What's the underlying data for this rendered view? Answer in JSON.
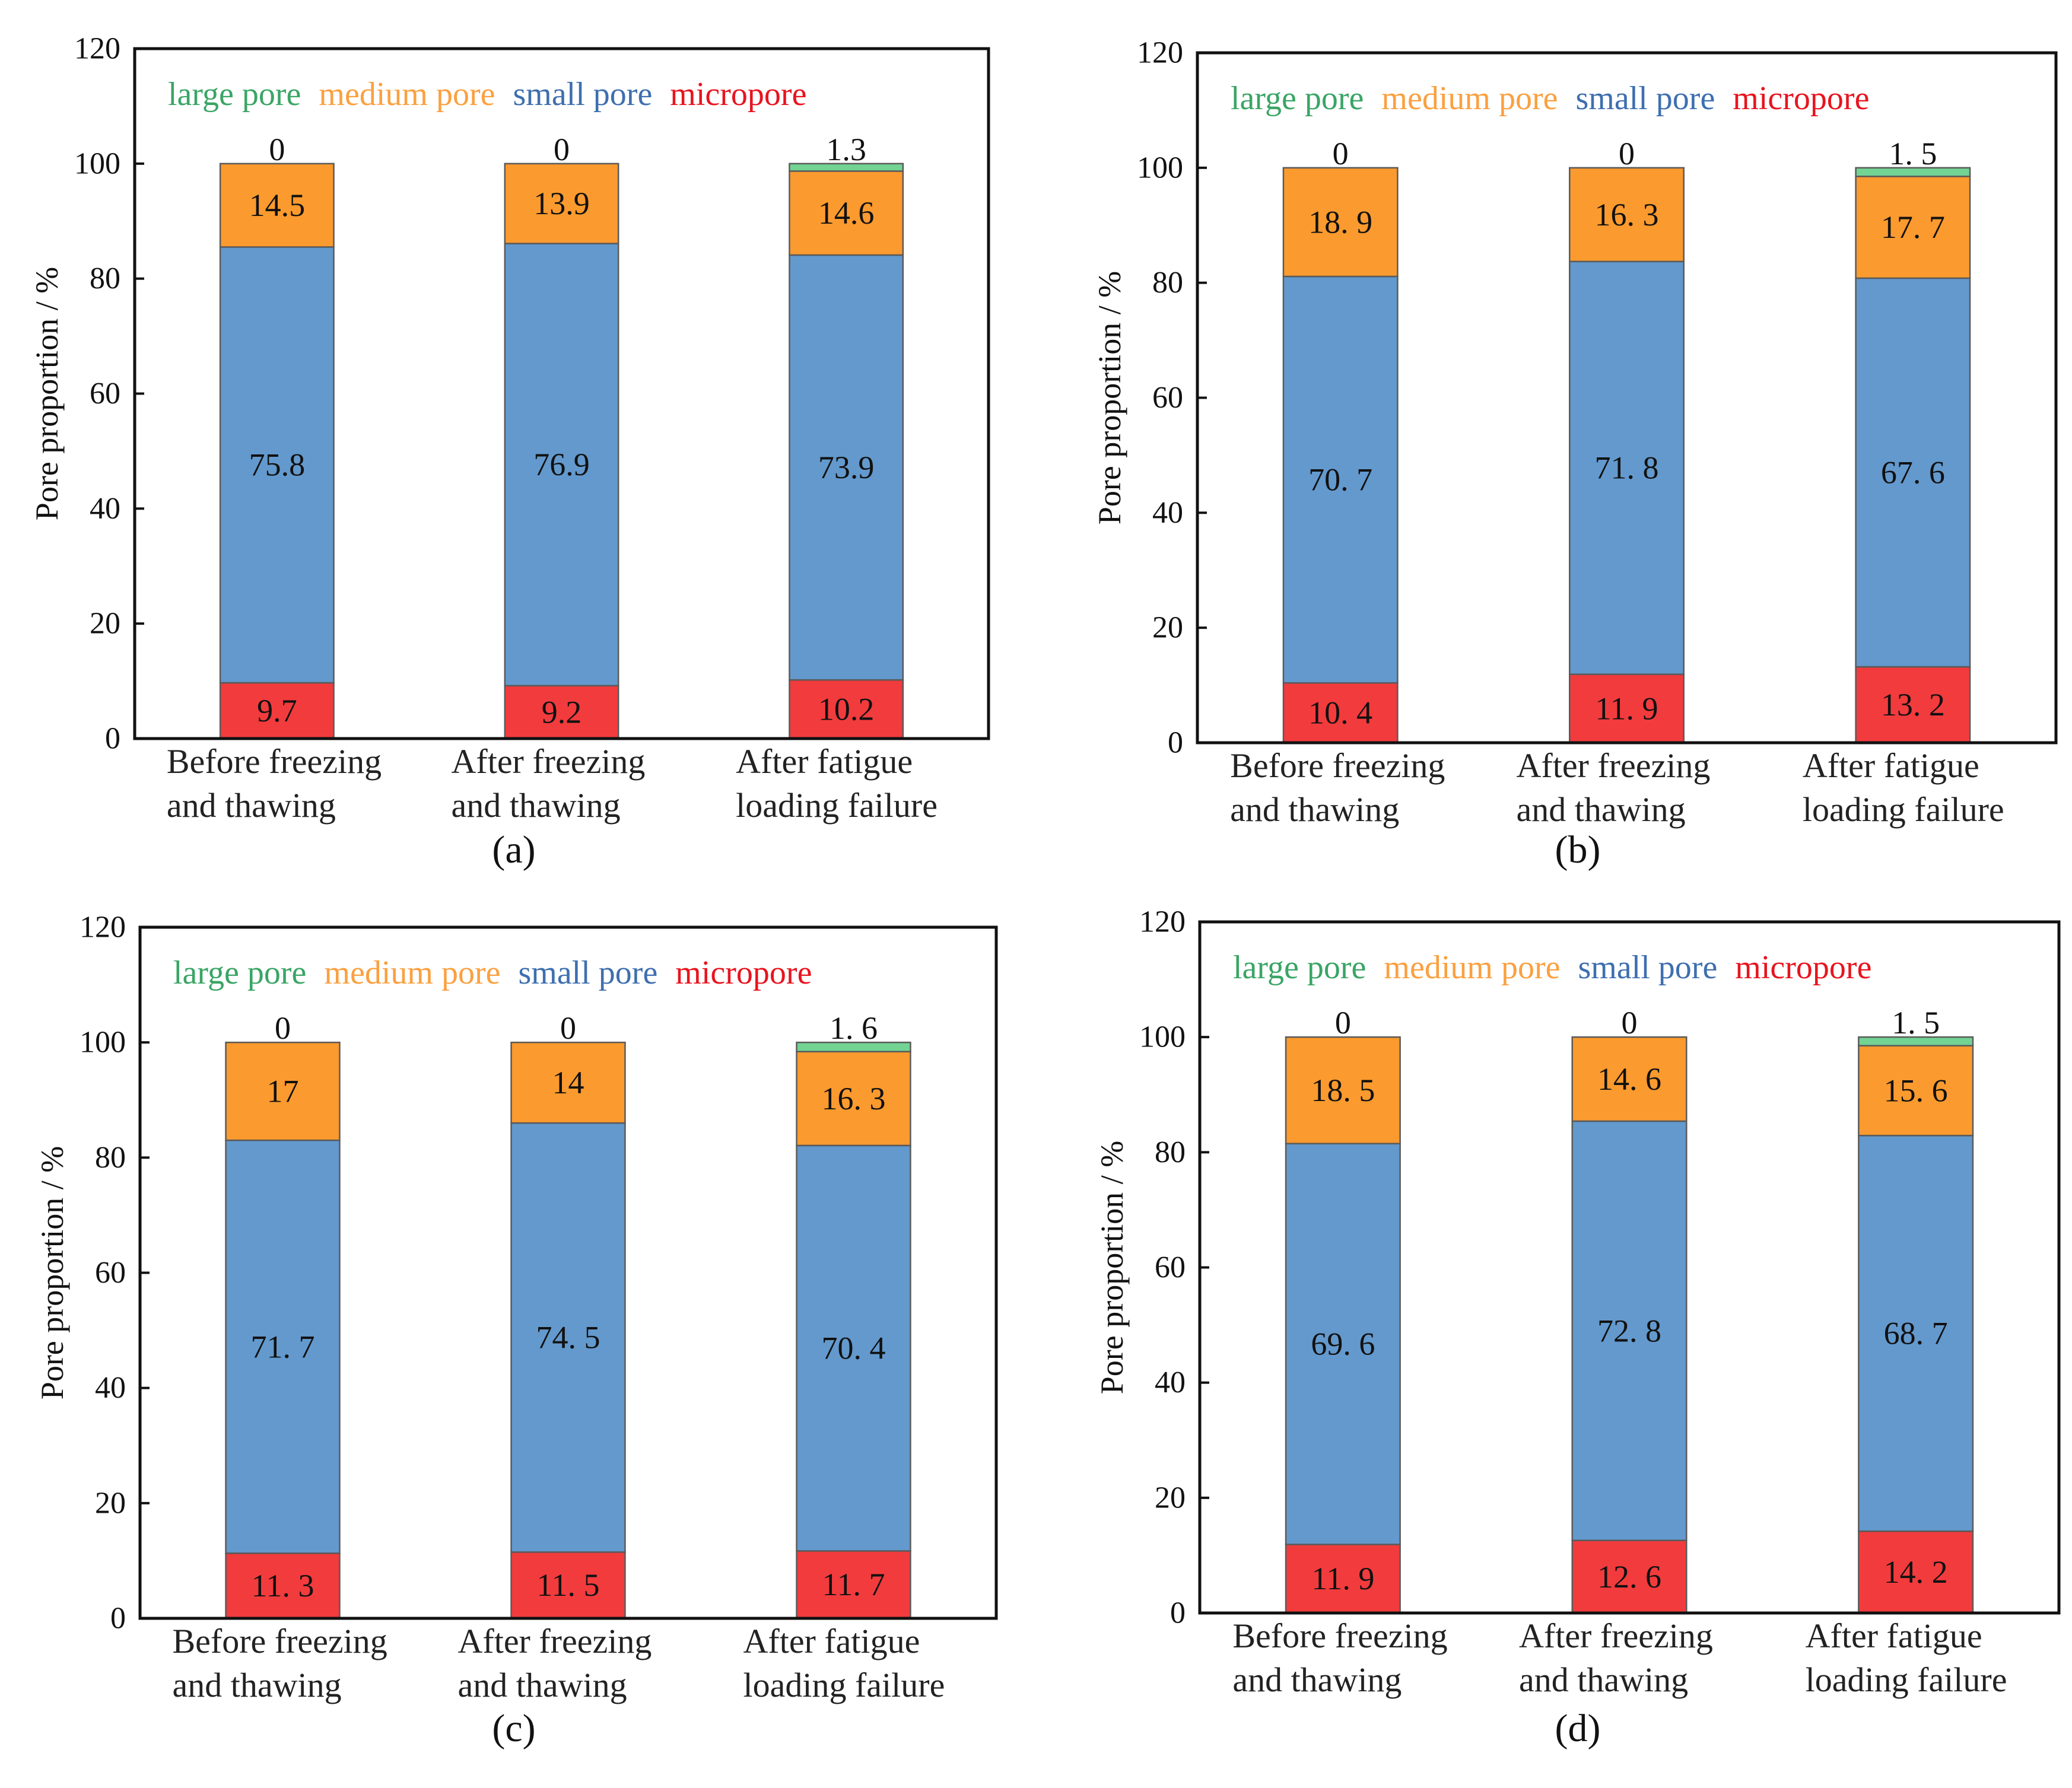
{
  "legend": {
    "labels": [
      "large pore",
      "medium pore",
      "small pore",
      "micropore"
    ],
    "text_colors": [
      "#3aa565",
      "#fba040",
      "#3e6faf",
      "#e8141e"
    ]
  },
  "series_colors": {
    "large": "#72d393",
    "medium": "#fb9a2e",
    "small": "#6399cd",
    "micro": "#f23b3d"
  },
  "chart_data": [
    {
      "panel": "(a)",
      "type": "bar",
      "stacked": true,
      "ylabel": "Pore proportion / %",
      "ylim": [
        0,
        120
      ],
      "yticks": [
        0,
        20,
        40,
        60,
        80,
        100,
        120
      ],
      "categories": [
        [
          "Before freezing",
          "and thawing"
        ],
        [
          "After freezing",
          "and thawing"
        ],
        [
          "After fatigue",
          "loading failure"
        ]
      ],
      "series": [
        {
          "name": "micropore",
          "key": "micro",
          "values": [
            9.7,
            9.2,
            10.2
          ],
          "labels": [
            "9.7",
            "9.2",
            "10.2"
          ]
        },
        {
          "name": "small pore",
          "key": "small",
          "values": [
            75.8,
            76.9,
            73.9
          ],
          "labels": [
            "75.8",
            "76.9",
            "73.9"
          ]
        },
        {
          "name": "medium pore",
          "key": "medium",
          "values": [
            14.5,
            13.9,
            14.6
          ],
          "labels": [
            "14.5",
            "13.9",
            "14.6"
          ]
        },
        {
          "name": "large pore",
          "key": "large",
          "values": [
            0,
            0,
            1.3
          ],
          "labels": [
            "0",
            "0",
            "1.3"
          ]
        }
      ]
    },
    {
      "panel": "(b)",
      "type": "bar",
      "stacked": true,
      "ylabel": "Pore proportion / %",
      "ylim": [
        0,
        120
      ],
      "yticks": [
        0,
        20,
        40,
        60,
        80,
        100,
        120
      ],
      "categories": [
        [
          "Before freezing",
          "and thawing"
        ],
        [
          "After freezing",
          "and thawing"
        ],
        [
          "After fatigue",
          "loading failure"
        ]
      ],
      "series": [
        {
          "name": "micropore",
          "key": "micro",
          "values": [
            10.4,
            11.9,
            13.2
          ],
          "labels": [
            "10. 4",
            "11. 9",
            "13. 2"
          ]
        },
        {
          "name": "small pore",
          "key": "small",
          "values": [
            70.7,
            71.8,
            67.6
          ],
          "labels": [
            "70. 7",
            "71. 8",
            "67. 6"
          ]
        },
        {
          "name": "medium pore",
          "key": "medium",
          "values": [
            18.9,
            16.3,
            17.7
          ],
          "labels": [
            "18. 9",
            "16. 3",
            "17. 7"
          ]
        },
        {
          "name": "large pore",
          "key": "large",
          "values": [
            0,
            0,
            1.5
          ],
          "labels": [
            "0",
            "0",
            "1. 5"
          ]
        }
      ]
    },
    {
      "panel": "(c)",
      "type": "bar",
      "stacked": true,
      "ylabel": "Pore proportion / %",
      "ylim": [
        0,
        120
      ],
      "yticks": [
        0,
        20,
        40,
        60,
        80,
        100,
        120
      ],
      "categories": [
        [
          "Before freezing",
          "and thawing"
        ],
        [
          "After freezing",
          "and thawing"
        ],
        [
          "After fatigue",
          "loading failure"
        ]
      ],
      "series": [
        {
          "name": "micropore",
          "key": "micro",
          "values": [
            11.3,
            11.5,
            11.7
          ],
          "labels": [
            "11. 3",
            "11. 5",
            "11. 7"
          ]
        },
        {
          "name": "small pore",
          "key": "small",
          "values": [
            71.7,
            74.5,
            70.4
          ],
          "labels": [
            "71. 7",
            "74. 5",
            "70. 4"
          ]
        },
        {
          "name": "medium pore",
          "key": "medium",
          "values": [
            17,
            14,
            16.3
          ],
          "labels": [
            "17",
            "14",
            "16. 3"
          ]
        },
        {
          "name": "large pore",
          "key": "large",
          "values": [
            0,
            0,
            1.6
          ],
          "labels": [
            "0",
            "0",
            "1. 6"
          ]
        }
      ]
    },
    {
      "panel": "(d)",
      "type": "bar",
      "stacked": true,
      "ylabel": "Pore proportion / %",
      "ylim": [
        0,
        120
      ],
      "yticks": [
        0,
        20,
        40,
        60,
        80,
        100,
        120
      ],
      "categories": [
        [
          "Before freezing",
          "and thawing"
        ],
        [
          "After freezing",
          "and thawing"
        ],
        [
          "After fatigue",
          "loading failure"
        ]
      ],
      "series": [
        {
          "name": "micropore",
          "key": "micro",
          "values": [
            11.9,
            12.6,
            14.2
          ],
          "labels": [
            "11. 9",
            "12. 6",
            "14. 2"
          ]
        },
        {
          "name": "small pore",
          "key": "small",
          "values": [
            69.6,
            72.8,
            68.7
          ],
          "labels": [
            "69. 6",
            "72. 8",
            "68. 7"
          ]
        },
        {
          "name": "medium pore",
          "key": "medium",
          "values": [
            18.5,
            14.6,
            15.6
          ],
          "labels": [
            "18. 5",
            "14. 6",
            "15. 6"
          ]
        },
        {
          "name": "large pore",
          "key": "large",
          "values": [
            0,
            0,
            1.5
          ],
          "labels": [
            "0",
            "0",
            "1. 5"
          ]
        }
      ]
    }
  ]
}
